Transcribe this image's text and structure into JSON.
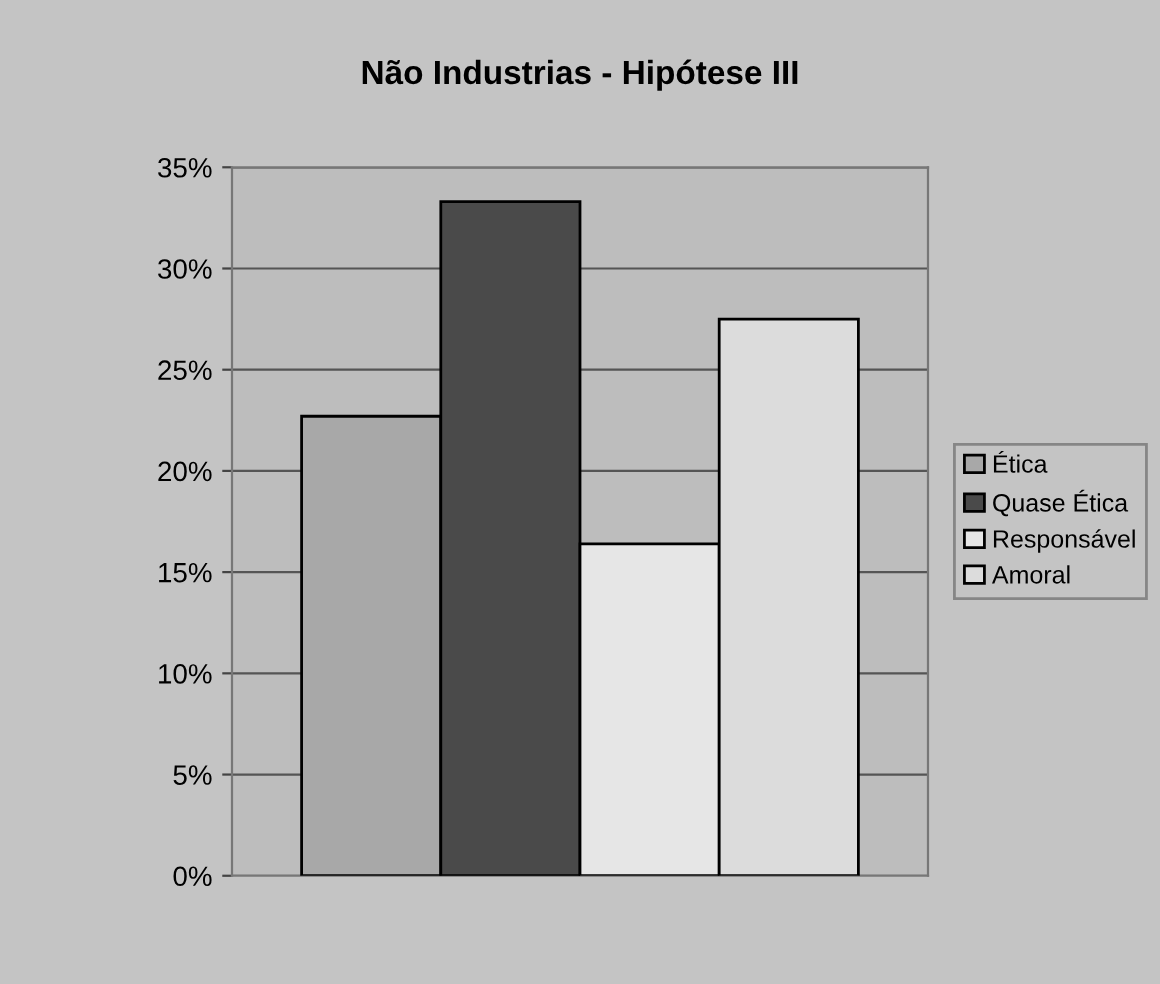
{
  "chart_data": {
    "type": "bar",
    "title": "Não Industrias - Hipótese III",
    "categories": [
      null
    ],
    "series": [
      {
        "name": "Ética",
        "color": "#a8a8a8",
        "values": [
          22.7
        ]
      },
      {
        "name": "Quase Ética",
        "color": "#4a4a4a",
        "values": [
          33.3
        ]
      },
      {
        "name": "Responsável",
        "color": "#e6e6e6",
        "values": [
          16.4
        ]
      },
      {
        "name": "Amoral",
        "color": "#dcdcdc",
        "values": [
          27.5
        ]
      }
    ],
    "ylim": [
      0,
      35
    ],
    "yticks": [
      {
        "value": 0,
        "label": "0%"
      },
      {
        "value": 5,
        "label": "5%"
      },
      {
        "value": 10,
        "label": "10%"
      },
      {
        "value": 15,
        "label": "15%"
      },
      {
        "value": 20,
        "label": "20%"
      },
      {
        "value": 25,
        "label": "25%"
      },
      {
        "value": 30,
        "label": "30%"
      },
      {
        "value": 35,
        "label": "35%"
      }
    ],
    "grid": "y",
    "legend": "right"
  }
}
